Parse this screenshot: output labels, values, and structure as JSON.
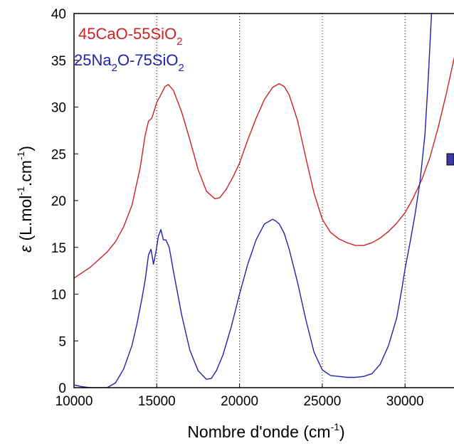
{
  "chart_data": {
    "type": "line",
    "title": "",
    "xlabel": {
      "base": "Nombre d'onde (cm",
      "sup": "-1",
      "end": ")"
    },
    "ylabel": {
      "sym": "ε",
      "base": " (L.mol",
      "sup1": "-1",
      "mid": ".cm",
      "sup2": "-1",
      "end": ")"
    },
    "xlim": [
      10000,
      33000
    ],
    "ylim": [
      0,
      40
    ],
    "x_ticks": [
      10000,
      15000,
      20000,
      25000,
      30000
    ],
    "x_tick_labels": [
      "10000",
      "15000",
      "20000",
      "25000",
      "30000"
    ],
    "y_ticks": [
      0,
      5,
      10,
      15,
      20,
      25,
      30,
      35,
      40
    ],
    "y_tick_labels": [
      "0",
      "5",
      "10",
      "15",
      "20",
      "25",
      "30",
      "35",
      "40"
    ],
    "grid": "vertical-dotted",
    "legend_position": "top-left",
    "series": [
      {
        "name": "45CaO-55SiO2",
        "legend": {
          "a": "45CaO-55SiO",
          "sub": "2"
        },
        "color": "#cc2222",
        "x": [
          10000,
          11000,
          12000,
          12500,
          13000,
          13500,
          14000,
          14300,
          14500,
          14700,
          15000,
          15300,
          15500,
          15700,
          16000,
          16500,
          17000,
          17500,
          18000,
          18500,
          18800,
          19200,
          19600,
          20000,
          20500,
          21000,
          21500,
          22000,
          22400,
          22700,
          23000,
          23500,
          24000,
          24500,
          25000,
          25500,
          26000,
          26500,
          27000,
          27500,
          28000,
          28500,
          29000,
          29500,
          30000,
          30500,
          31000,
          31500,
          32000,
          32500,
          33000
        ],
        "y": [
          11.7,
          12.9,
          14.5,
          15.6,
          17.2,
          19.5,
          23.5,
          27.0,
          28.5,
          28.8,
          30.5,
          31.5,
          32.2,
          32.4,
          31.8,
          29.5,
          26.5,
          23.3,
          21.0,
          20.2,
          20.3,
          21.2,
          22.5,
          24.0,
          26.5,
          28.8,
          30.8,
          32.1,
          32.5,
          32.2,
          31.3,
          28.6,
          24.6,
          20.8,
          18.0,
          16.6,
          15.9,
          15.5,
          15.2,
          15.2,
          15.5,
          16.0,
          16.7,
          17.6,
          18.7,
          20.3,
          22.2,
          24.6,
          27.8,
          31.5,
          35.5
        ]
      },
      {
        "name": "25Na2O-75SiO2",
        "legend": {
          "a": "25Na",
          "sub1": "2",
          "b": "O-75SiO",
          "sub2": "2"
        },
        "color": "#2222aa",
        "x": [
          10000,
          10500,
          11000,
          11500,
          12000,
          12500,
          13000,
          13500,
          13800,
          14100,
          14300,
          14500,
          14650,
          14800,
          14950,
          15100,
          15250,
          15400,
          15550,
          15750,
          16000,
          16500,
          17000,
          17500,
          18000,
          18300,
          18600,
          19000,
          19500,
          20000,
          20500,
          21000,
          21500,
          22000,
          22200,
          22400,
          22700,
          23000,
          23500,
          24000,
          24500,
          25000,
          25500,
          26000,
          26500,
          27000,
          27500,
          28000,
          28500,
          29000,
          29500,
          29800,
          30000,
          30300,
          30600,
          30900,
          31200,
          31400,
          31600
        ],
        "y": [
          0.3,
          0.1,
          0.0,
          0.0,
          0.0,
          0.5,
          2.0,
          4.5,
          6.8,
          9.5,
          11.5,
          14.2,
          14.8,
          13.2,
          14.5,
          16.2,
          16.9,
          15.8,
          15.8,
          15.0,
          12.5,
          7.8,
          4.0,
          1.8,
          0.9,
          1.0,
          1.8,
          3.5,
          6.5,
          10.0,
          13.2,
          15.8,
          17.5,
          18.0,
          17.8,
          17.5,
          16.5,
          14.8,
          11.3,
          7.3,
          3.8,
          1.9,
          1.3,
          1.2,
          1.1,
          1.1,
          1.2,
          1.5,
          2.5,
          4.5,
          7.5,
          10.5,
          12.7,
          15.5,
          18.5,
          22.0,
          27.0,
          33.0,
          40.0
        ]
      }
    ]
  }
}
